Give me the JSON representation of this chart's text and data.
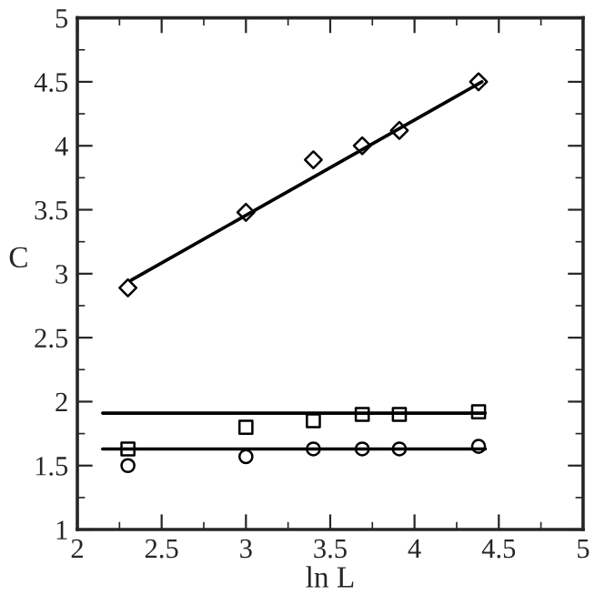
{
  "chart_data": {
    "type": "scatter",
    "xlabel": "ln L",
    "ylabel": "C",
    "xlim": [
      2,
      5
    ],
    "ylim": [
      1,
      5
    ],
    "xticks": [
      2,
      2.5,
      3,
      3.5,
      4,
      4.5,
      5
    ],
    "yticks": [
      1,
      1.5,
      2,
      2.5,
      3,
      3.5,
      4,
      4.5,
      5
    ],
    "grid": false,
    "series": [
      {
        "marker": "diamond",
        "color": "#000000",
        "x": [
          2.3,
          3.0,
          3.4,
          3.69,
          3.91,
          4.38
        ],
        "values": [
          2.89,
          3.48,
          3.89,
          4.0,
          4.12,
          4.5
        ]
      },
      {
        "marker": "square",
        "color": "#000000",
        "x": [
          2.3,
          3.0,
          3.4,
          3.69,
          3.91,
          4.38
        ],
        "values": [
          1.63,
          1.8,
          1.85,
          1.9,
          1.9,
          1.92
        ]
      },
      {
        "marker": "circle",
        "color": "#000000",
        "x": [
          2.3,
          3.0,
          3.4,
          3.69,
          3.91,
          4.38
        ],
        "values": [
          1.5,
          1.57,
          1.63,
          1.63,
          1.63,
          1.65
        ]
      },
      {
        "type": "line",
        "marker": "none",
        "color": "#000000",
        "x": [
          2.32,
          4.4
        ],
        "values": [
          2.95,
          4.5
        ]
      },
      {
        "type": "line",
        "marker": "none",
        "color": "#000000",
        "x": [
          2.15,
          4.42
        ],
        "values": [
          1.91,
          1.91
        ]
      },
      {
        "type": "line",
        "marker": "none",
        "color": "#000000",
        "x": [
          2.15,
          4.42
        ],
        "values": [
          1.63,
          1.63
        ]
      }
    ]
  }
}
